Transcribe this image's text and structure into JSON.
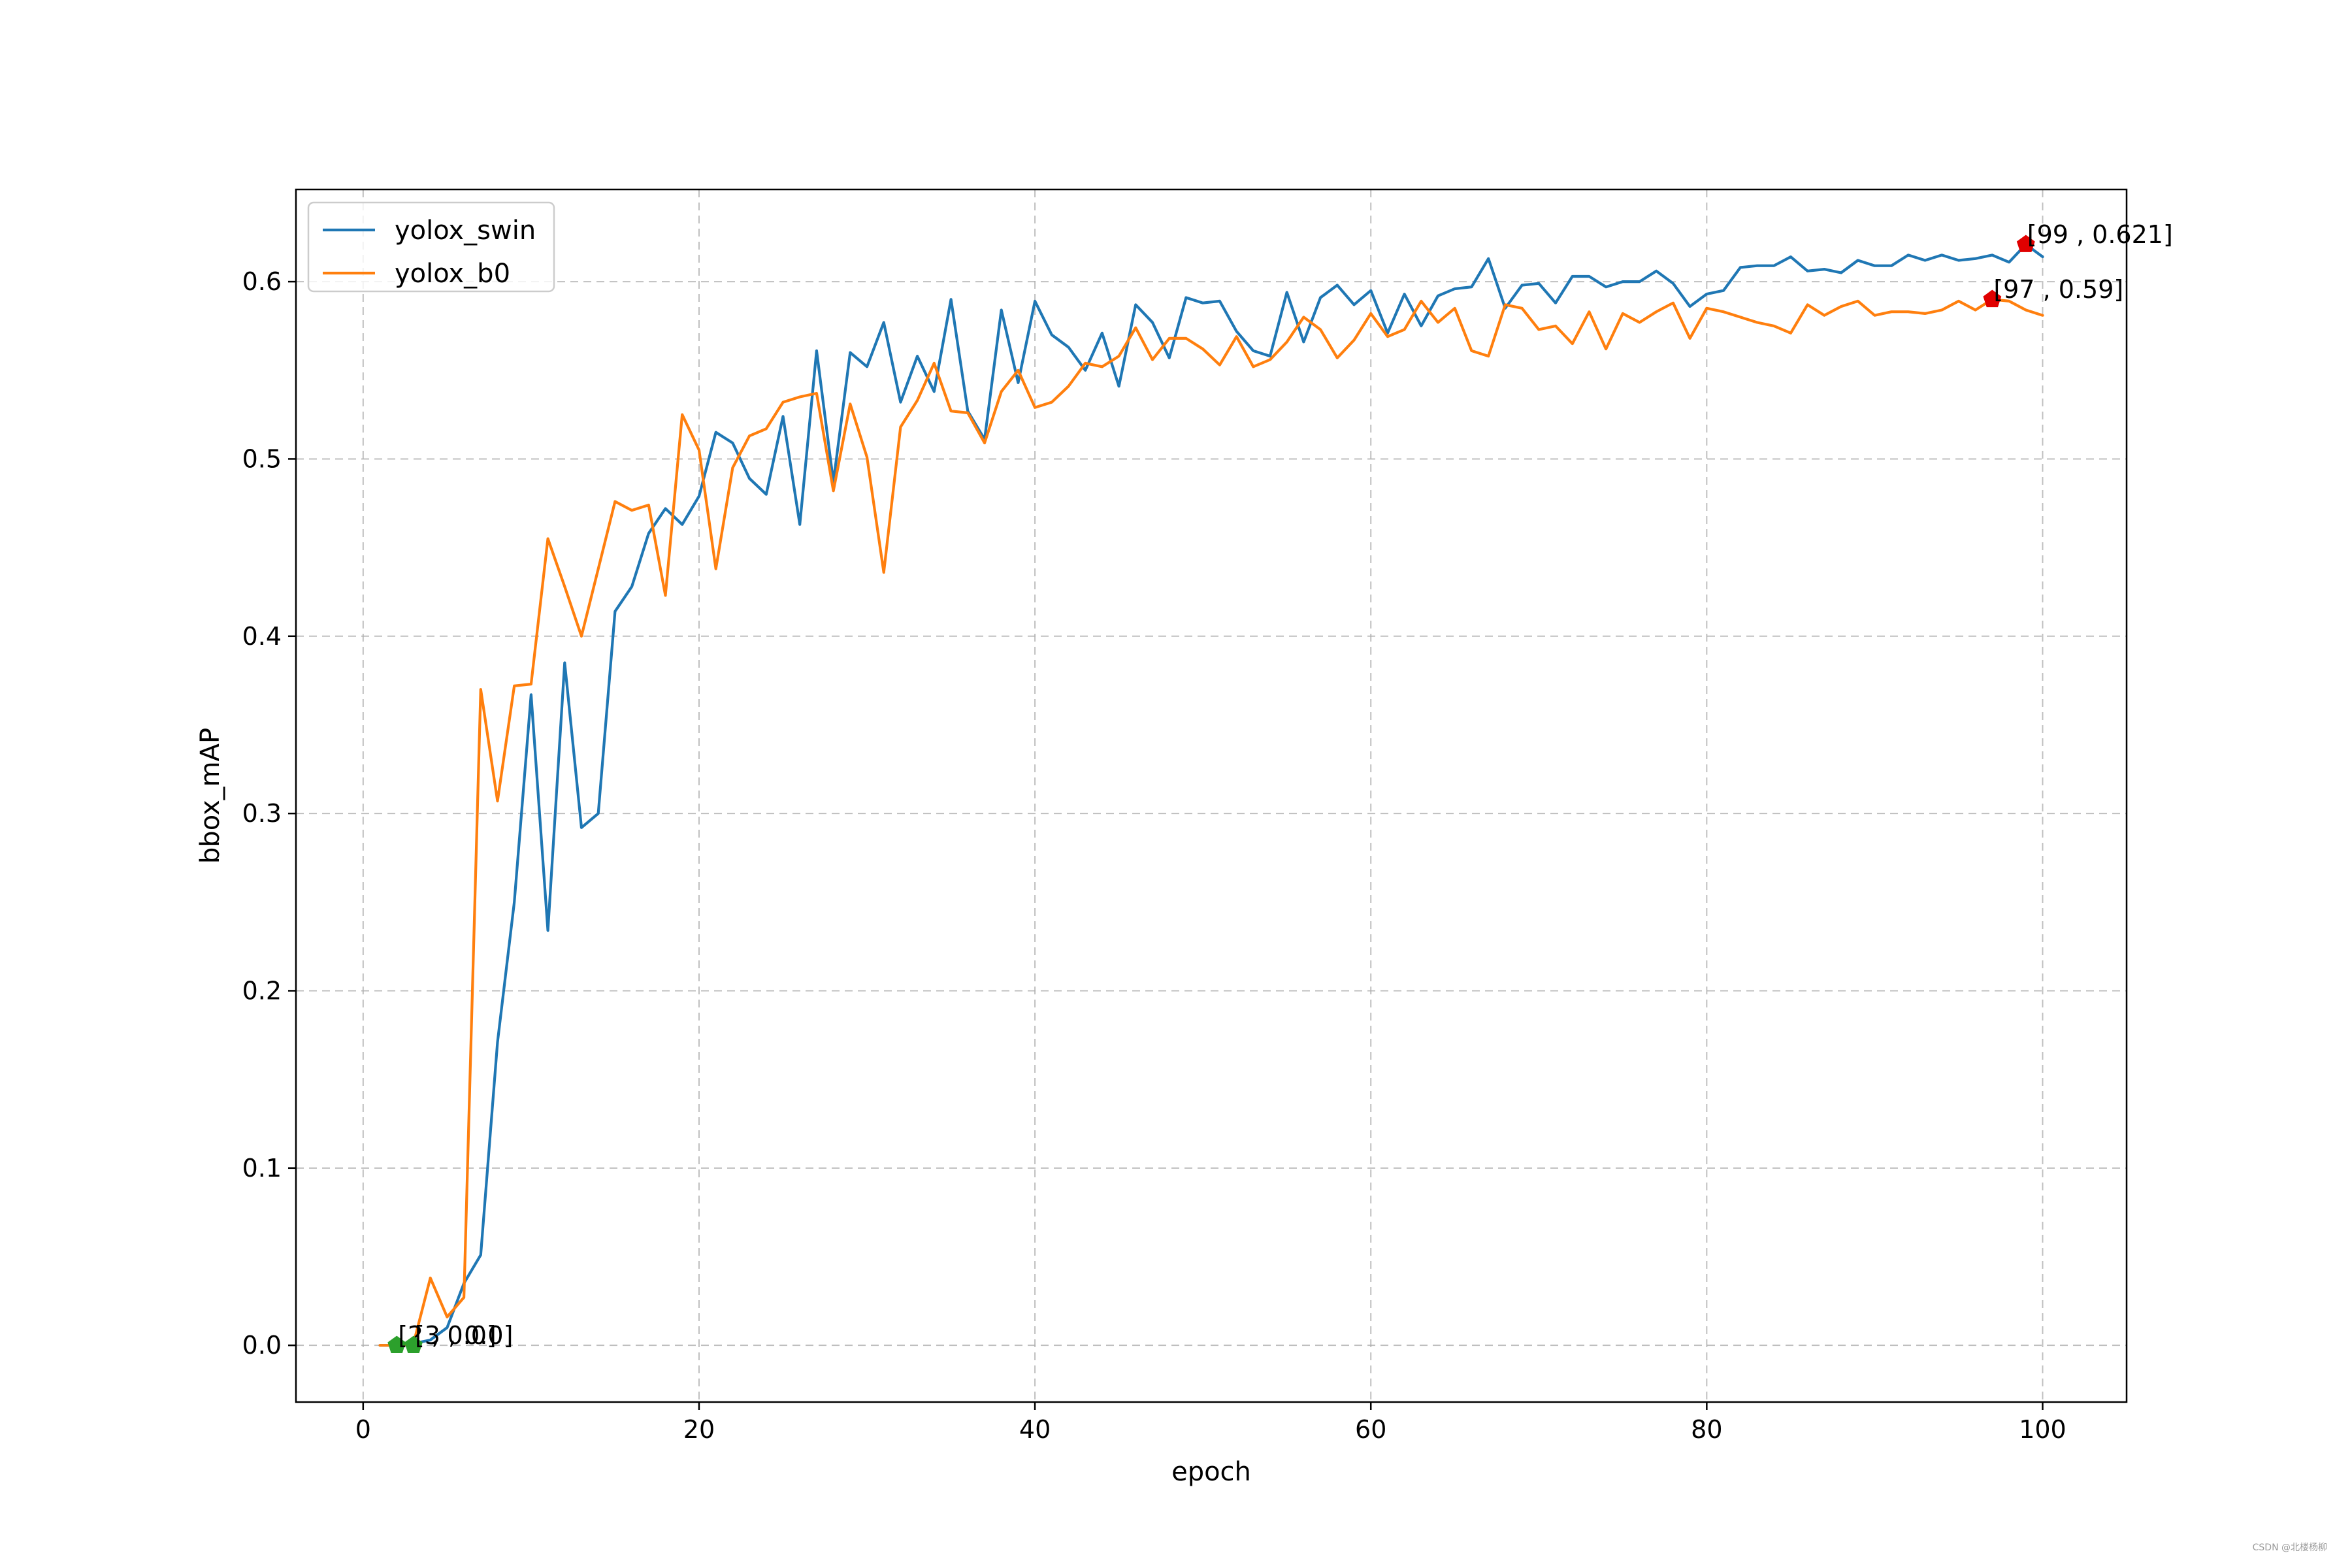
{
  "chart_data": {
    "type": "line",
    "xlabel": "epoch",
    "ylabel": "bbox_mAP",
    "xlim": [
      -4,
      105
    ],
    "ylim": [
      -0.032,
      0.652
    ],
    "xticks": [
      0,
      20,
      40,
      60,
      80,
      100
    ],
    "yticks": [
      0.0,
      0.1,
      0.2,
      0.3,
      0.4,
      0.5,
      0.6
    ],
    "grid": true,
    "legend_position": "upper left",
    "series": [
      {
        "name": "yolox_swin",
        "color": "#1f77b4",
        "x": [
          1,
          2,
          3,
          4,
          5,
          6,
          7,
          8,
          9,
          10,
          11,
          12,
          13,
          14,
          15,
          16,
          17,
          18,
          19,
          20,
          21,
          22,
          23,
          24,
          25,
          26,
          27,
          28,
          29,
          30,
          31,
          32,
          33,
          34,
          35,
          36,
          37,
          38,
          39,
          40,
          41,
          42,
          43,
          44,
          45,
          46,
          47,
          48,
          49,
          50,
          51,
          52,
          53,
          54,
          55,
          56,
          57,
          58,
          59,
          60,
          61,
          62,
          63,
          64,
          65,
          66,
          67,
          68,
          69,
          70,
          71,
          72,
          73,
          74,
          75,
          76,
          77,
          78,
          79,
          80,
          81,
          82,
          83,
          84,
          85,
          86,
          87,
          88,
          89,
          90,
          91,
          92,
          93,
          94,
          95,
          96,
          97,
          98,
          99,
          100
        ],
        "values": [
          0.0,
          0.0,
          0.001,
          0.003,
          0.01,
          0.035,
          0.051,
          0.171,
          0.25,
          0.367,
          0.234,
          0.385,
          0.292,
          0.3,
          0.414,
          0.428,
          0.458,
          0.472,
          0.463,
          0.479,
          0.515,
          0.509,
          0.489,
          0.48,
          0.524,
          0.463,
          0.561,
          0.487,
          0.56,
          0.552,
          0.577,
          0.532,
          0.558,
          0.538,
          0.59,
          0.527,
          0.511,
          0.584,
          0.543,
          0.589,
          0.57,
          0.563,
          0.55,
          0.571,
          0.541,
          0.587,
          0.577,
          0.557,
          0.591,
          0.588,
          0.589,
          0.572,
          0.561,
          0.558,
          0.594,
          0.566,
          0.591,
          0.598,
          0.587,
          0.595,
          0.571,
          0.593,
          0.575,
          0.592,
          0.596,
          0.597,
          0.613,
          0.585,
          0.598,
          0.599,
          0.588,
          0.603,
          0.603,
          0.597,
          0.6,
          0.6,
          0.606,
          0.599,
          0.586,
          0.593,
          0.595,
          0.608,
          0.609,
          0.609,
          0.614,
          0.606,
          0.607,
          0.605,
          0.612,
          0.609,
          0.609,
          0.615,
          0.612,
          0.615,
          0.612,
          0.613,
          0.615,
          0.611,
          0.621,
          0.614
        ]
      },
      {
        "name": "yolox_b0",
        "color": "#ff7f0e",
        "x": [
          1,
          2,
          3,
          4,
          5,
          6,
          7,
          8,
          9,
          10,
          11,
          12,
          13,
          14,
          15,
          16,
          17,
          18,
          19,
          20,
          21,
          22,
          23,
          24,
          25,
          26,
          27,
          28,
          29,
          30,
          31,
          32,
          33,
          34,
          35,
          36,
          37,
          38,
          39,
          40,
          41,
          42,
          43,
          44,
          45,
          46,
          47,
          48,
          49,
          50,
          51,
          52,
          53,
          54,
          55,
          56,
          57,
          58,
          59,
          60,
          61,
          62,
          63,
          64,
          65,
          66,
          67,
          68,
          69,
          70,
          71,
          72,
          73,
          74,
          75,
          76,
          77,
          78,
          79,
          80,
          81,
          82,
          83,
          84,
          85,
          86,
          87,
          88,
          89,
          90,
          91,
          92,
          93,
          94,
          95,
          96,
          97,
          98,
          99,
          100
        ],
        "values": [
          0.0,
          0.0,
          0.001,
          0.038,
          0.016,
          0.027,
          0.37,
          0.307,
          0.372,
          0.373,
          0.455,
          0.428,
          0.4,
          0.438,
          0.476,
          0.471,
          0.474,
          0.423,
          0.525,
          0.505,
          0.438,
          0.495,
          0.513,
          0.517,
          0.532,
          0.535,
          0.537,
          0.482,
          0.531,
          0.501,
          0.436,
          0.518,
          0.533,
          0.554,
          0.527,
          0.526,
          0.509,
          0.538,
          0.55,
          0.529,
          0.532,
          0.541,
          0.554,
          0.552,
          0.558,
          0.574,
          0.556,
          0.568,
          0.568,
          0.562,
          0.553,
          0.569,
          0.552,
          0.556,
          0.566,
          0.58,
          0.573,
          0.557,
          0.567,
          0.582,
          0.569,
          0.573,
          0.589,
          0.577,
          0.585,
          0.561,
          0.558,
          0.587,
          0.585,
          0.573,
          0.575,
          0.565,
          0.583,
          0.562,
          0.582,
          0.577,
          0.583,
          0.588,
          0.568,
          0.585,
          0.583,
          0.58,
          0.577,
          0.575,
          0.571,
          0.587,
          0.581,
          0.586,
          0.589,
          0.581,
          0.583,
          0.583,
          0.582,
          0.584,
          0.589,
          0.584,
          0.59,
          0.589,
          0.584,
          0.581
        ]
      }
    ],
    "annotations": [
      {
        "text": "[99 , 0.621]",
        "x": 99,
        "y": 0.621,
        "marker_color": "#e00000"
      },
      {
        "text": "[97 , 0.59]",
        "x": 97,
        "y": 0.59,
        "marker_color": "#e00000"
      },
      {
        "text": "[2 , 0.0]",
        "x": 2,
        "y": 0.0,
        "marker_color": "#2ca02c"
      },
      {
        "text": "[3 , 0.0]",
        "x": 3,
        "y": 0.0,
        "marker_color": "#2ca02c"
      }
    ]
  },
  "watermark": "CSDN @北楼杨柳"
}
